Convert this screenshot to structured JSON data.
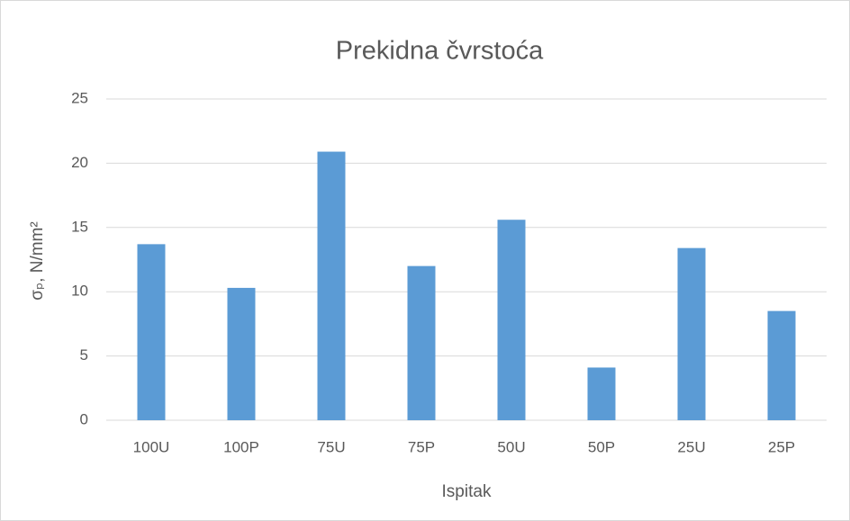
{
  "chart_data": {
    "type": "bar",
    "title": "Prekidna čvrstoća",
    "x_label": "Ispitak",
    "y_label": "σₚ, N/mm²",
    "categories": [
      "100U",
      "100P",
      "75U",
      "75P",
      "50U",
      "50P",
      "25U",
      "25P"
    ],
    "values": [
      13.7,
      10.3,
      20.9,
      12.0,
      15.6,
      4.1,
      13.4,
      8.5
    ],
    "color": "#5b9bd5",
    "ylim": [
      0,
      25
    ],
    "yticks": [
      0,
      5,
      10,
      15,
      20,
      25
    ],
    "grid": true
  }
}
